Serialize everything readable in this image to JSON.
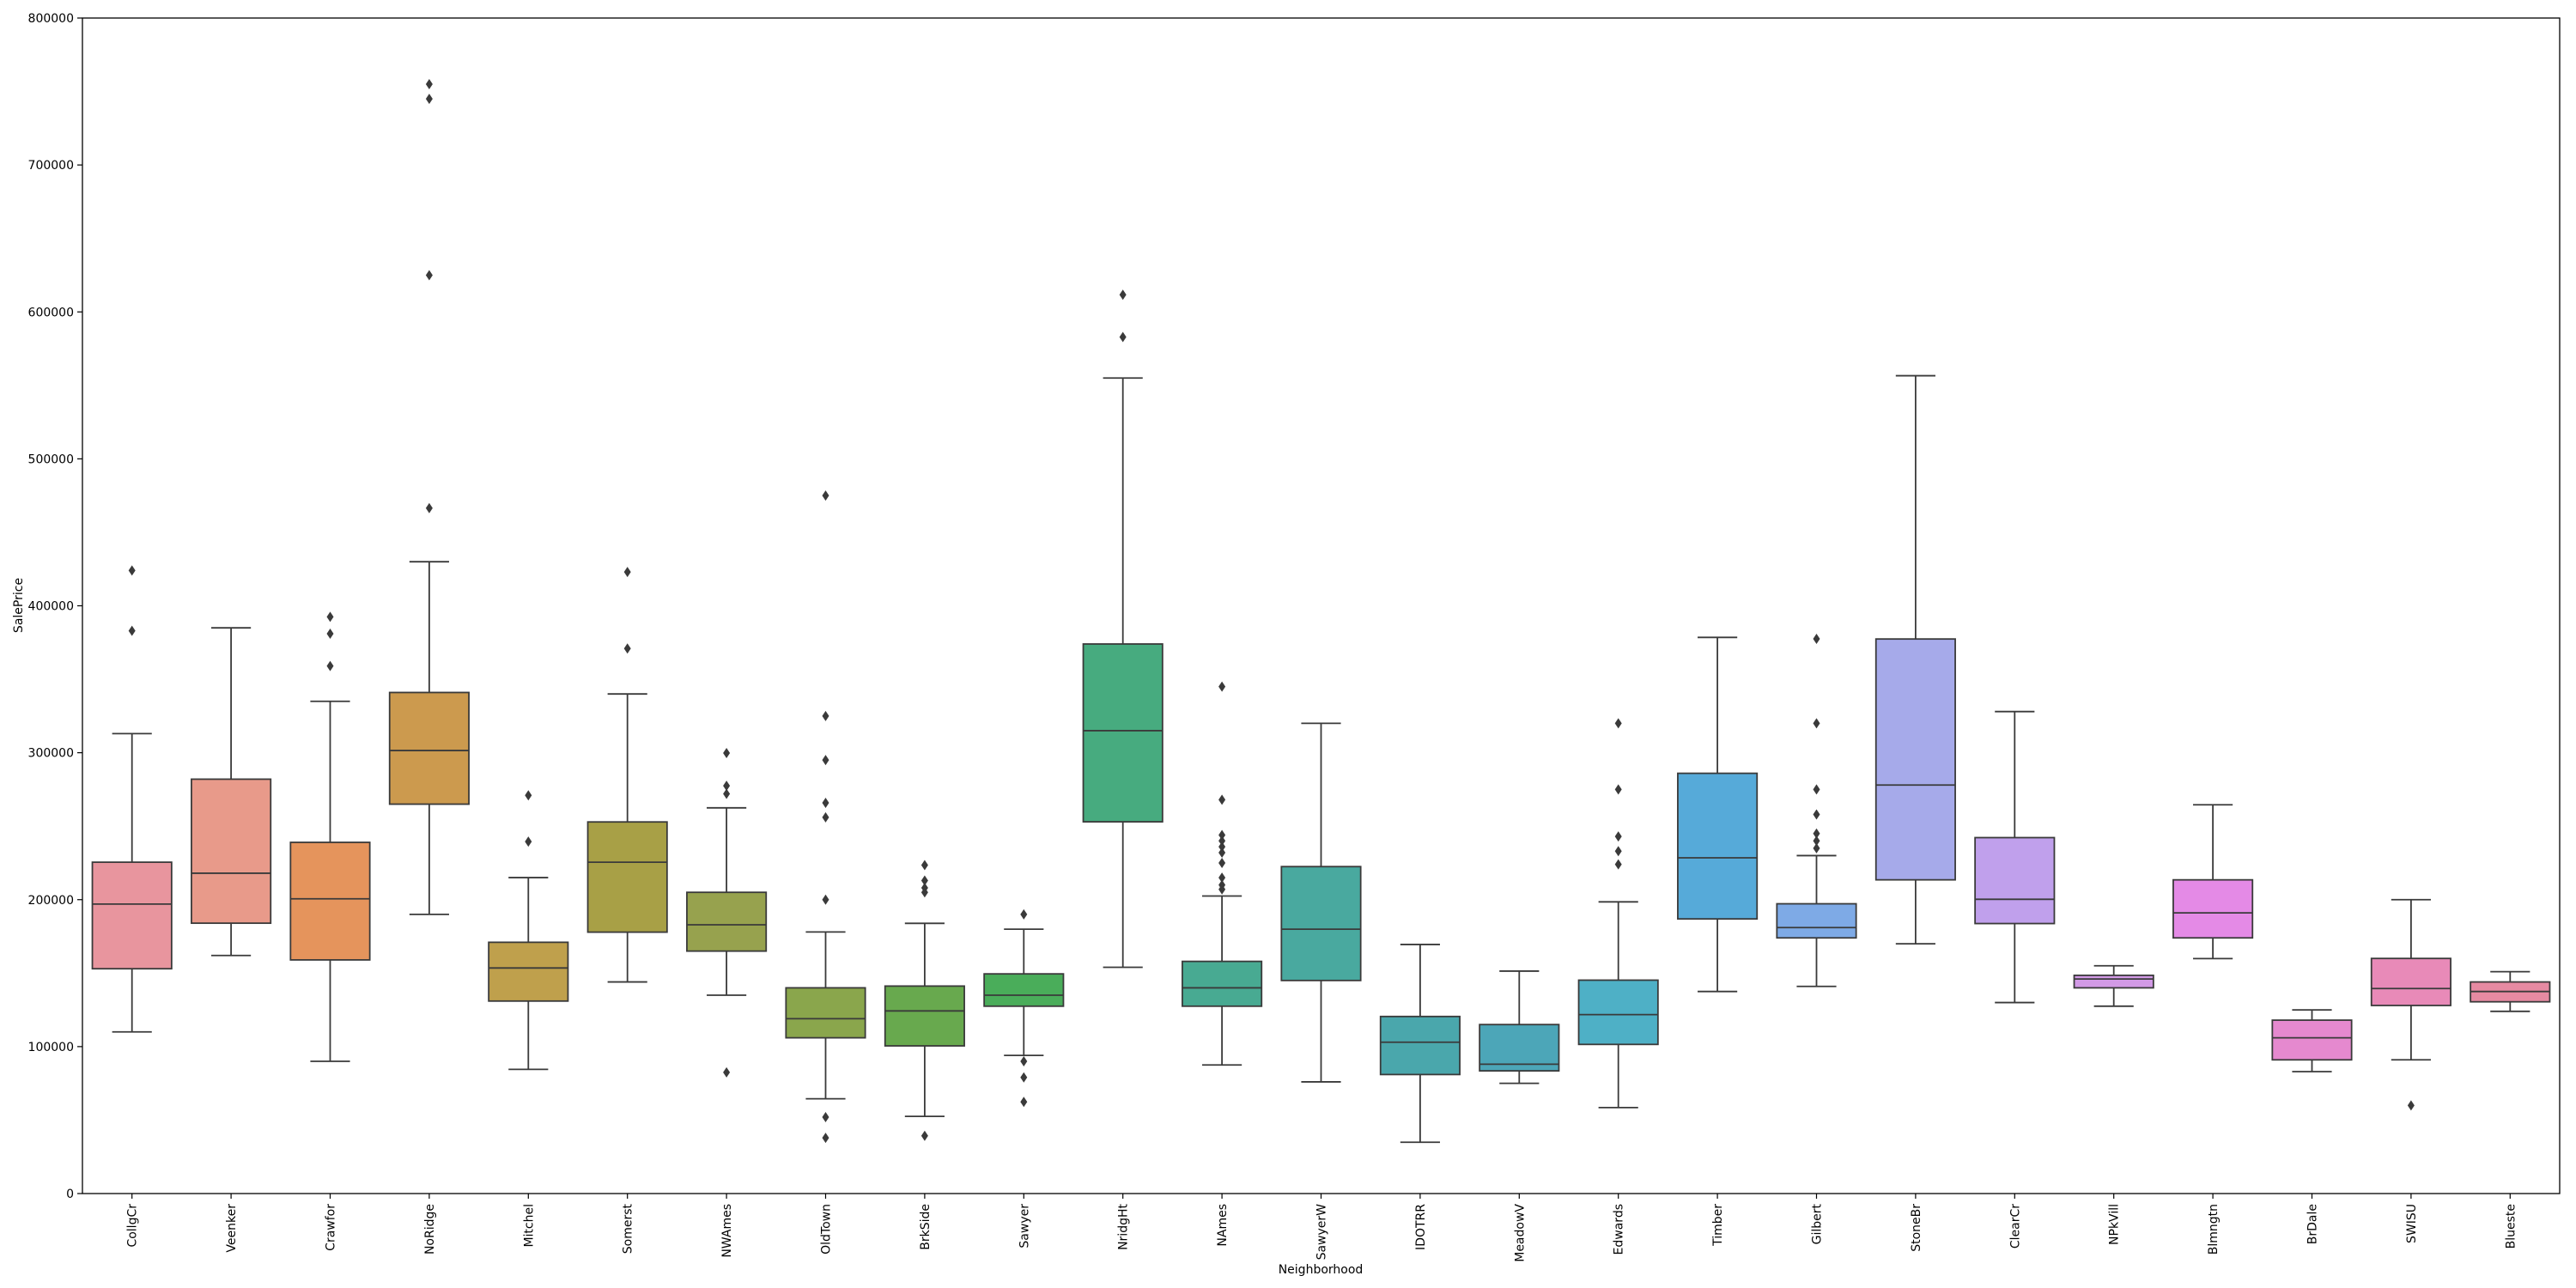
{
  "chart_data": {
    "type": "boxplot",
    "title": "",
    "xlabel": "Neighborhood",
    "ylabel": "SalePrice",
    "ylim": [
      0,
      800000
    ],
    "yticks": [
      0,
      100000,
      200000,
      300000,
      400000,
      500000,
      600000,
      700000,
      800000
    ],
    "categories": [
      "CollgCr",
      "Veenker",
      "Crawfor",
      "NoRidge",
      "Mitchel",
      "Somerst",
      "NWAmes",
      "OldTown",
      "BrkSide",
      "Sawyer",
      "NridgHt",
      "NAmes",
      "SawyerW",
      "IDOTRR",
      "MeadowV",
      "Edwards",
      "Timber",
      "Gilbert",
      "StoneBr",
      "ClearCr",
      "NPkVill",
      "Blmngtn",
      "BrDale",
      "SWISU",
      "Blueste"
    ],
    "colors": [
      "#e8959e",
      "#e89a8a",
      "#e5945c",
      "#cc9a4e",
      "#bfa04c",
      "#a8a046",
      "#97a24e",
      "#8aa64c",
      "#68a94e",
      "#4aad5a",
      "#47ab7f",
      "#48aa92",
      "#49a99f",
      "#4aa7ac",
      "#4ca6b8",
      "#4eb0c6",
      "#56aad9",
      "#7eaae6",
      "#a6aaea",
      "#c0a0ec",
      "#d29ae6",
      "#e48ae6",
      "#e589cf",
      "#e88ab8",
      "#e68aa2"
    ],
    "boxes": [
      {
        "category": "CollgCr",
        "whislo": 110000,
        "q1": 153000,
        "median": 197000,
        "q3": 225500,
        "whishi": 313000,
        "fliers": [
          383000,
          424000
        ]
      },
      {
        "category": "Veenker",
        "whislo": 162000,
        "q1": 184000,
        "median": 218000,
        "q3": 282000,
        "whishi": 385000,
        "fliers": []
      },
      {
        "category": "Crawfor",
        "whislo": 90000,
        "q1": 159000,
        "median": 200600,
        "q3": 239000,
        "whishi": 335000,
        "fliers": [
          359000,
          381000,
          392500
        ]
      },
      {
        "category": "NoRidge",
        "whislo": 190000,
        "q1": 265000,
        "median": 301500,
        "q3": 341000,
        "whishi": 430000,
        "fliers": [
          466500,
          625000,
          745000,
          755000
        ]
      },
      {
        "category": "Mitchel",
        "whislo": 84500,
        "q1": 131000,
        "median": 153500,
        "q3": 171000,
        "whishi": 215000,
        "fliers": [
          239500,
          271000
        ]
      },
      {
        "category": "Somerst",
        "whislo": 144000,
        "q1": 177900,
        "median": 225500,
        "q3": 252900,
        "whishi": 340000,
        "fliers": [
          370900,
          423000
        ]
      },
      {
        "category": "NWAmes",
        "whislo": 135000,
        "q1": 165000,
        "median": 182900,
        "q3": 205000,
        "whishi": 262500,
        "fliers": [
          82500,
          272000,
          277500,
          299800
        ]
      },
      {
        "category": "OldTown",
        "whislo": 64500,
        "q1": 106000,
        "median": 119000,
        "q3": 140000,
        "whishi": 178000,
        "fliers": [
          37900,
          52000,
          200000,
          256000,
          265900,
          295000,
          325000,
          475000
        ]
      },
      {
        "category": "BrkSide",
        "whislo": 52500,
        "q1": 100500,
        "median": 124300,
        "q3": 141200,
        "whishi": 183900,
        "fliers": [
          39300,
          205000,
          208000,
          213000,
          223500
        ]
      },
      {
        "category": "Sawyer",
        "whislo": 94000,
        "q1": 127500,
        "median": 135000,
        "q3": 149500,
        "whishi": 179900,
        "fliers": [
          62383,
          79000,
          90000,
          190000
        ]
      },
      {
        "category": "NridgHt",
        "whislo": 154000,
        "q1": 253000,
        "median": 315000,
        "q3": 374000,
        "whishi": 555000,
        "fliers": [
          582933,
          611657
        ]
      },
      {
        "category": "NAmes",
        "whislo": 87500,
        "q1": 127500,
        "median": 140000,
        "q3": 158000,
        "whishi": 202500,
        "fliers": [
          207000,
          210000,
          215000,
          225000,
          232000,
          236000,
          240000,
          244000,
          268000,
          345000
        ]
      },
      {
        "category": "SawyerW",
        "whislo": 76000,
        "q1": 145000,
        "median": 179900,
        "q3": 222500,
        "whishi": 320000,
        "fliers": []
      },
      {
        "category": "IDOTRR",
        "whislo": 34900,
        "q1": 81000,
        "median": 103000,
        "q3": 120500,
        "whishi": 169500,
        "fliers": []
      },
      {
        "category": "MeadowV",
        "whislo": 75000,
        "q1": 83500,
        "median": 88000,
        "q3": 115000,
        "whishi": 151400,
        "fliers": []
      },
      {
        "category": "Edwards",
        "whislo": 58500,
        "q1": 101500,
        "median": 121750,
        "q3": 145225,
        "whishi": 198500,
        "fliers": [
          224000,
          233000,
          243000,
          275000,
          320000
        ]
      },
      {
        "category": "Timber",
        "whislo": 137500,
        "q1": 186900,
        "median": 228475,
        "q3": 286000,
        "whishi": 378500,
        "fliers": []
      },
      {
        "category": "Gilbert",
        "whislo": 141000,
        "q1": 174000,
        "median": 181000,
        "q3": 197200,
        "whishi": 230000,
        "fliers": [
          235000,
          240000,
          245000,
          258000,
          275000,
          320000,
          377500
        ]
      },
      {
        "category": "StoneBr",
        "whislo": 170000,
        "q1": 213500,
        "median": 278000,
        "q3": 377400,
        "whishi": 556581,
        "fliers": []
      },
      {
        "category": "ClearCr",
        "whislo": 130000,
        "q1": 183750,
        "median": 200250,
        "q3": 242225,
        "whishi": 328000,
        "fliers": []
      },
      {
        "category": "NPkVill",
        "whislo": 127500,
        "q1": 140000,
        "median": 146000,
        "q3": 148500,
        "whishi": 155000,
        "fliers": []
      },
      {
        "category": "Blmngtn",
        "whislo": 159895,
        "q1": 174000,
        "median": 191000,
        "q3": 213490,
        "whishi": 264561,
        "fliers": []
      },
      {
        "category": "BrDale",
        "whislo": 83000,
        "q1": 91000,
        "median": 106000,
        "q3": 118000,
        "whishi": 125000,
        "fliers": []
      },
      {
        "category": "SWISU",
        "whislo": 91000,
        "q1": 128000,
        "median": 139500,
        "q3": 160000,
        "whishi": 200000,
        "fliers": [
          60000
        ]
      },
      {
        "category": "Blueste",
        "whislo": 124000,
        "q1": 130500,
        "median": 137500,
        "q3": 144000,
        "whishi": 151000,
        "fliers": []
      }
    ]
  }
}
